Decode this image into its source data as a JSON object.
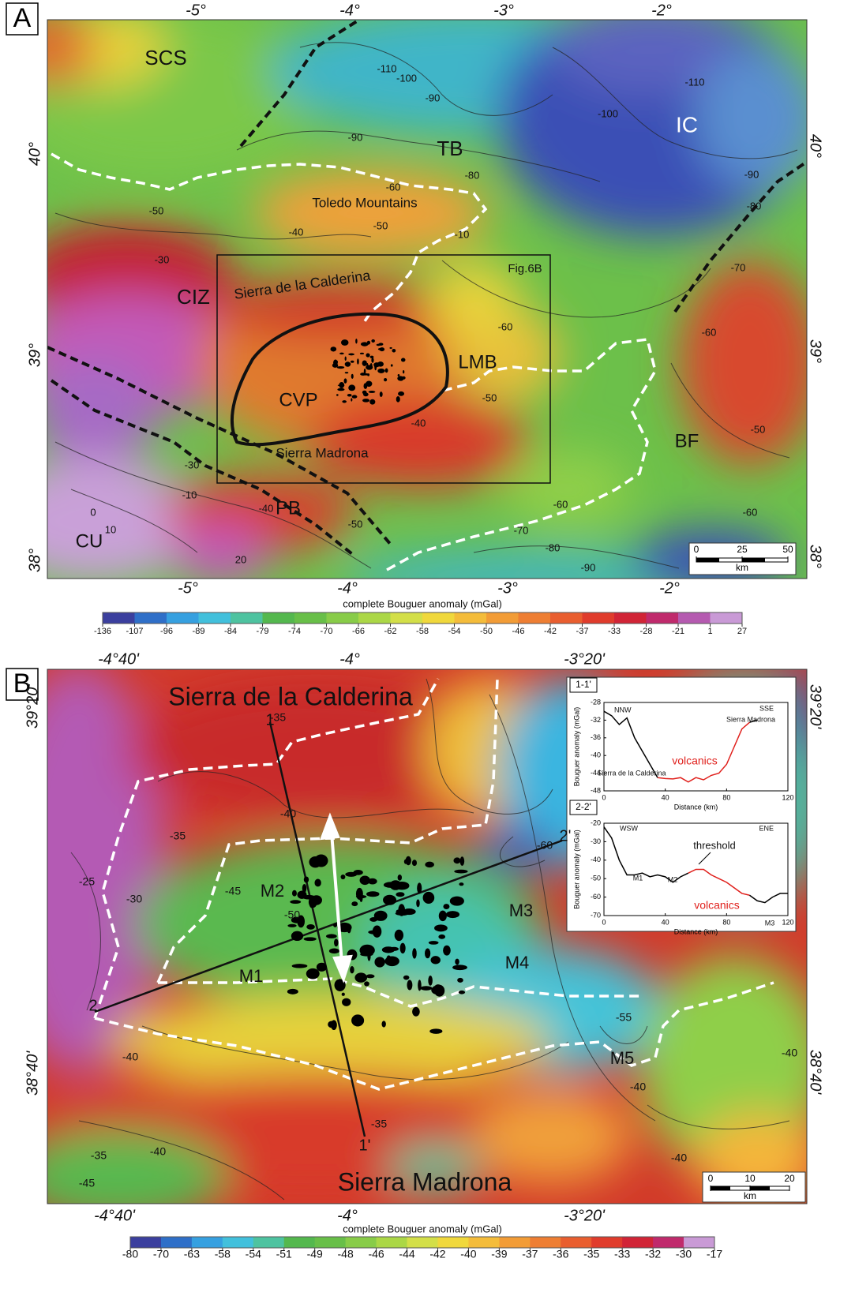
{
  "panel_a": {
    "label": "A",
    "lon_top": [
      "-5°",
      "-4°",
      "-3°",
      "-2°"
    ],
    "lon_bottom": [
      "-5°",
      "-4°",
      "-3°",
      "-2°"
    ],
    "lat_left": [
      "40°",
      "39°",
      "38°"
    ],
    "lat_right": [
      "40°",
      "39°",
      "38°"
    ],
    "features": [
      "SCS",
      "TB",
      "IC",
      "Toledo Mountains",
      "Fig.6B",
      "CIZ",
      "Sierra de la Calderina",
      "LMB",
      "CVP",
      "BF",
      "Sierra Madrona",
      "PB",
      "CU"
    ],
    "contours": [
      -110,
      -100,
      -90,
      -110,
      -100,
      -90,
      -80,
      -90,
      -60,
      -50,
      -50,
      -40,
      -30,
      -10,
      -60,
      -70,
      -60,
      -80,
      -50,
      -50,
      -40,
      -30,
      -10,
      0,
      10,
      20,
      -40,
      -50,
      -60,
      -70,
      -80,
      -90,
      -60
    ],
    "scale_bar": {
      "ticks": [
        0,
        25,
        50
      ],
      "unit": "km"
    },
    "colorbar": {
      "title": "complete Bouguer anomaly (mGal)",
      "ticks": [
        -136,
        -107,
        -96,
        -89,
        -84,
        -79,
        -74,
        -70,
        -66,
        -62,
        -58,
        -54,
        -50,
        -46,
        -42,
        -37,
        -33,
        -28,
        -21,
        1,
        27
      ],
      "colors": [
        "#3b3f9e",
        "#2f6fc8",
        "#36a0e0",
        "#42c0dc",
        "#4ec3a0",
        "#54b84e",
        "#68bf48",
        "#88cc48",
        "#abd746",
        "#d3df48",
        "#f0d83c",
        "#f4bc3a",
        "#f29c36",
        "#ee7e33",
        "#e95e2f",
        "#e03c2c",
        "#d12436",
        "#c02a6c",
        "#b55ab0",
        "#c99ad6"
      ]
    }
  },
  "panel_b": {
    "label": "B",
    "lon_top": [
      "-4°40'",
      "-4°",
      "-3°20'"
    ],
    "lon_bottom": [
      "-4°40'",
      "-4°",
      "-3°20'"
    ],
    "lat_left": [
      "39°20'",
      "38°40'"
    ],
    "lat_right": [
      "39°20'",
      "38°40'"
    ],
    "features": [
      "Sierra de la Calderina",
      "Sierra Madrona",
      "M1",
      "M2",
      "M3",
      "M4",
      "M5",
      "1",
      "1'",
      "2",
      "2'"
    ],
    "contours": [
      -35,
      -40,
      -35,
      -25,
      -30,
      -45,
      -50,
      -60,
      -55,
      -40,
      -35,
      -40,
      -35,
      -45,
      -40,
      -40,
      -40
    ],
    "scale_bar": {
      "ticks": [
        0,
        10,
        20
      ],
      "unit": "km"
    },
    "colorbar": {
      "title": "complete Bouguer anomaly (mGal)",
      "ticks": [
        -80,
        -70,
        -63,
        -58,
        -54,
        -51,
        -49,
        -48,
        -46,
        -44,
        -42,
        -40,
        -39,
        -37,
        -36,
        -35,
        -33,
        -32,
        -30,
        -17
      ],
      "colors": [
        "#3b3f9e",
        "#2f6fc8",
        "#36a0e0",
        "#42c0dc",
        "#4ec3a0",
        "#54b84e",
        "#68bf48",
        "#88cc48",
        "#abd746",
        "#d3df48",
        "#f0d83c",
        "#f4bc3a",
        "#f29c36",
        "#ee7e33",
        "#e95e2f",
        "#e03c2c",
        "#d12436",
        "#c02a6c",
        "#c99ad6"
      ]
    },
    "profiles": [
      {
        "title": "1-1'",
        "xlabel": "Distance (km)",
        "ylabel": "Bouguer anomaly (mGal)",
        "xlim": [
          0,
          120
        ],
        "xticks": [
          0,
          40,
          80,
          120
        ],
        "ylim": [
          -48,
          -28
        ],
        "yticks": [
          -28,
          -32,
          -36,
          -40,
          -44,
          -48
        ],
        "annotations": [
          "NNW",
          "SSE",
          "Sierra de la Calderina",
          "Sierra Madrona",
          "volcanics"
        ],
        "series": [
          {
            "color": "#000000",
            "x": [
              0,
              5,
              10,
              15,
              20,
              25,
              30,
              35
            ],
            "values": [
              -30,
              -31,
              -33,
              -31.5,
              -36,
              -39,
              -42,
              -45
            ]
          },
          {
            "color": "#e0201c",
            "x": [
              35,
              40,
              45,
              50,
              55,
              60,
              65,
              70,
              75,
              80,
              85,
              90,
              95
            ],
            "values": [
              -45,
              -45.2,
              -45.3,
              -45,
              -46,
              -45,
              -45.5,
              -44.5,
              -44,
              -42,
              -38,
              -34,
              -32.5
            ]
          },
          {
            "color": "#000000",
            "x": [
              95,
              100
            ],
            "values": [
              -32.5,
              -32
            ]
          }
        ]
      },
      {
        "title": "2-2'",
        "xlabel": "Distance (km)",
        "ylabel": "Bouguer anomaly (mGal)",
        "xlim": [
          0,
          120
        ],
        "xticks": [
          0,
          40,
          80,
          120
        ],
        "ylim": [
          -70,
          -20
        ],
        "yticks": [
          -20,
          -30,
          -40,
          -50,
          -60,
          -70
        ],
        "annotations": [
          "WSW",
          "ENE",
          "threshold",
          "M1",
          "M2",
          "volcanics",
          "M3"
        ],
        "series": [
          {
            "color": "#000000",
            "x": [
              0,
              5,
              10,
              15,
              20,
              25,
              30,
              35,
              40,
              45,
              50,
              55
            ],
            "values": [
              -22,
              -28,
              -40,
              -48,
              -48,
              -47,
              -49,
              -48,
              -49,
              -52,
              -49,
              -47
            ]
          },
          {
            "color": "#e0201c",
            "x": [
              55,
              60,
              65,
              70,
              75,
              80,
              85,
              90,
              95
            ],
            "values": [
              -47,
              -45,
              -45,
              -48,
              -50,
              -52,
              -55,
              -58,
              -59
            ]
          },
          {
            "color": "#000000",
            "x": [
              95,
              100,
              105,
              110,
              115,
              120
            ],
            "values": [
              -59,
              -62,
              -63,
              -60,
              -58,
              -58
            ]
          }
        ]
      }
    ]
  }
}
